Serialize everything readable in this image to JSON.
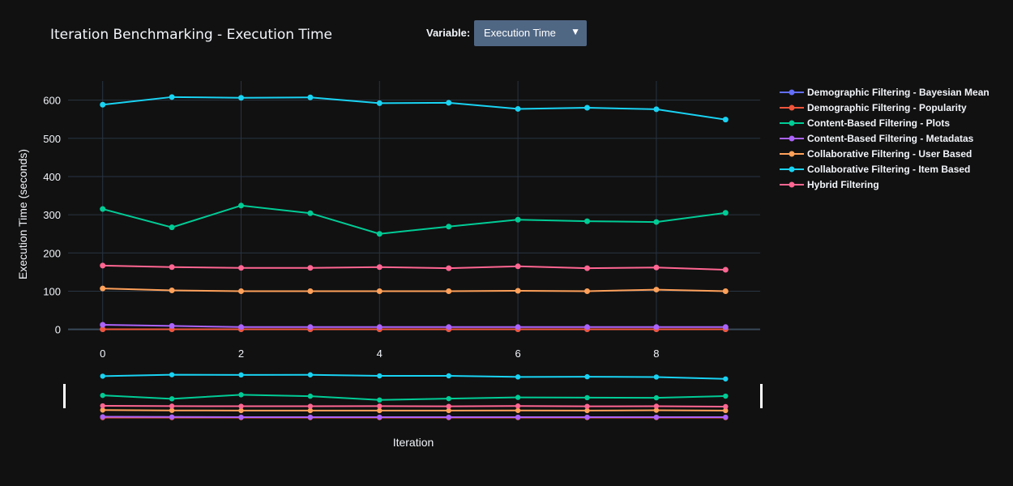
{
  "header": {
    "title": "Iteration Benchmarking - Execution Time",
    "variable_label": "Variable:",
    "variable_value": "Execution Time",
    "dropdown_arrow": "▼"
  },
  "colors": {
    "background": "#111111",
    "grid": "#283442",
    "zeroline": "#3a4a5a",
    "text": "#f2f5fa",
    "dropdown_bg": "#506784"
  },
  "chart_data": {
    "type": "line",
    "title": "Iteration Benchmarking - Execution Time",
    "xlabel": "Iteration",
    "ylabel": "Execution Time (seconds)",
    "x": [
      0,
      1,
      2,
      3,
      4,
      5,
      6,
      7,
      8,
      9
    ],
    "xticks": [
      0,
      2,
      4,
      6,
      8
    ],
    "yticks": [
      0,
      100,
      200,
      300,
      400,
      500,
      600
    ],
    "xlim": [
      -0.5,
      9.5
    ],
    "ylim": [
      -5,
      650
    ],
    "grid": true,
    "legend_position": "right",
    "rangeslider": true,
    "series": [
      {
        "name": "Demographic Filtering - Bayesian Mean",
        "color": "#636efa",
        "values": [
          0.3,
          0.3,
          0.3,
          0.3,
          0.3,
          0.3,
          0.3,
          0.3,
          0.3,
          0.3
        ]
      },
      {
        "name": "Demographic Filtering - Popularity",
        "color": "#ef553b",
        "values": [
          0.2,
          0.2,
          0.2,
          0.2,
          0.2,
          0.2,
          0.2,
          0.2,
          0.2,
          0.2
        ]
      },
      {
        "name": "Content-Based Filtering - Plots",
        "color": "#00cc96",
        "values": [
          315,
          267,
          324,
          304,
          250,
          269,
          287,
          283,
          281,
          305
        ]
      },
      {
        "name": "Content-Based Filtering - Metadatas",
        "color": "#ab63fa",
        "values": [
          12,
          9,
          6,
          6,
          6,
          6,
          6,
          6,
          6,
          6
        ]
      },
      {
        "name": "Collaborative Filtering - User Based",
        "color": "#ffa15a",
        "values": [
          107,
          102,
          100,
          100,
          100,
          100,
          101,
          100,
          104,
          100
        ]
      },
      {
        "name": "Collaborative Filtering - Item Based",
        "color": "#19d3f3",
        "values": [
          588,
          608,
          606,
          607,
          592,
          593,
          577,
          580,
          576,
          549
        ]
      },
      {
        "name": "Hybrid Filtering",
        "color": "#ff6692",
        "values": [
          167,
          163,
          161,
          161,
          163,
          160,
          165,
          160,
          162,
          156
        ]
      }
    ]
  }
}
